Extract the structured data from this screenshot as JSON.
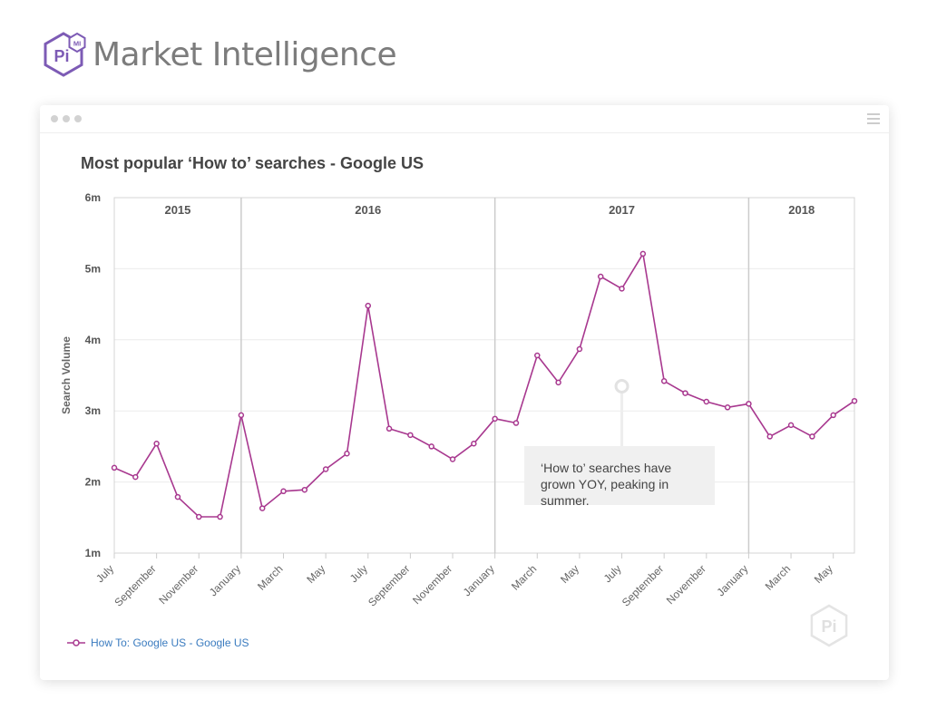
{
  "brand": {
    "name": "Market Intelligence",
    "logo_text": "Pi",
    "logo_badge": "MI"
  },
  "window": {
    "menu_icon": "hamburger-icon"
  },
  "annotation": {
    "text": "‘How to’ searches have grown YOY, peaking in summer."
  },
  "watermark": {
    "text": "Pi"
  },
  "chart_data": {
    "type": "line",
    "title": "Most popular ‘How to’ searches - Google US",
    "ylabel": "Search Volume",
    "xlabel": "",
    "ylim": [
      1000000,
      6000000
    ],
    "y_ticks": [
      {
        "value": 1000000,
        "label": "1m"
      },
      {
        "value": 2000000,
        "label": "2m"
      },
      {
        "value": 3000000,
        "label": "3m"
      },
      {
        "value": 4000000,
        "label": "4m"
      },
      {
        "value": 5000000,
        "label": "5m"
      },
      {
        "value": 6000000,
        "label": "6m"
      }
    ],
    "x_tick_labels": [
      "July",
      "September",
      "November",
      "January",
      "March",
      "May",
      "July",
      "September",
      "November",
      "January",
      "March",
      "May",
      "July",
      "September",
      "November",
      "January",
      "March",
      "May"
    ],
    "x_tick_every": 2,
    "year_bands": [
      {
        "label": "2015",
        "start": 0,
        "end": 6
      },
      {
        "label": "2016",
        "start": 6,
        "end": 18
      },
      {
        "label": "2017",
        "start": 18,
        "end": 30
      },
      {
        "label": "2018",
        "start": 30,
        "end": 35
      }
    ],
    "grid": true,
    "legend_position": "bottom-left",
    "series": [
      {
        "name": "How To: Google US - Google US",
        "color": "#a8388f",
        "x": [
          "2015-07",
          "2015-08",
          "2015-09",
          "2015-10",
          "2015-11",
          "2015-12",
          "2016-01",
          "2016-02",
          "2016-03",
          "2016-04",
          "2016-05",
          "2016-06",
          "2016-07",
          "2016-08",
          "2016-09",
          "2016-10",
          "2016-11",
          "2016-12",
          "2017-01",
          "2017-02",
          "2017-03",
          "2017-04",
          "2017-05",
          "2017-06",
          "2017-07",
          "2017-08",
          "2017-09",
          "2017-10",
          "2017-11",
          "2017-12",
          "2018-01",
          "2018-02",
          "2018-03",
          "2018-04",
          "2018-05",
          "2018-06"
        ],
        "values": [
          2200000,
          2070000,
          2540000,
          1790000,
          1510000,
          1510000,
          2940000,
          1630000,
          1870000,
          1890000,
          2180000,
          2400000,
          4480000,
          2750000,
          2660000,
          2500000,
          2320000,
          2540000,
          2890000,
          2830000,
          3780000,
          3400000,
          3870000,
          4890000,
          4720000,
          5210000,
          3420000,
          3250000,
          3130000,
          3050000,
          3100000,
          2640000,
          2800000,
          2640000,
          2940000,
          3140000
        ]
      }
    ]
  }
}
